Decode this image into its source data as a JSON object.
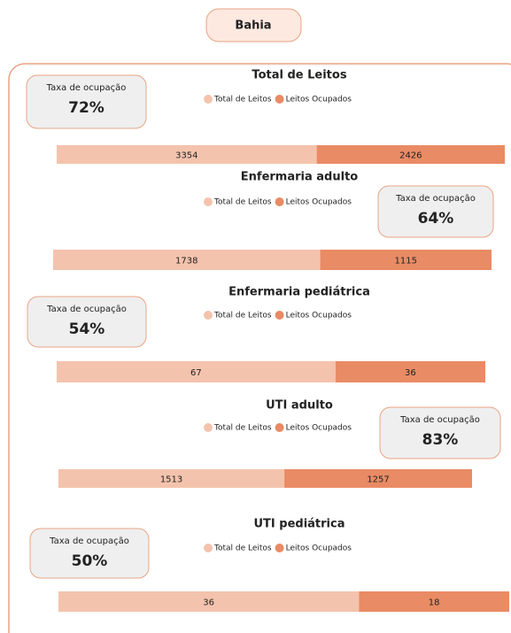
{
  "header": {
    "title": "Bahia"
  },
  "chart_data": [
    {
      "type": "bar",
      "title": "Total de Leitos",
      "series": [
        {
          "name": "Total de Leitos",
          "color": "#f4c3ad",
          "values": [
            3354
          ]
        },
        {
          "name": "Leitos Ocupados",
          "color": "#e98b64",
          "values": [
            2426
          ]
        }
      ],
      "kpi": {
        "label": "Taxa de ocupação",
        "text": "72%"
      }
    },
    {
      "type": "bar",
      "title": "Enfermaria adulto",
      "series": [
        {
          "name": "Total de Leitos",
          "color": "#f4c3ad",
          "values": [
            1738
          ]
        },
        {
          "name": "Leitos Ocupados",
          "color": "#e98b64",
          "values": [
            1115
          ]
        }
      ],
      "kpi": {
        "label": "Taxa de ocupação",
        "text": "64%"
      }
    },
    {
      "type": "bar",
      "title": "Enfermaria pediátrica",
      "series": [
        {
          "name": "Total de Leitos",
          "color": "#f4c3ad",
          "values": [
            67
          ]
        },
        {
          "name": "Leitos Ocupados",
          "color": "#e98b64",
          "values": [
            36
          ]
        }
      ],
      "kpi": {
        "label": "Taxa de ocupação",
        "text": "54%"
      }
    },
    {
      "type": "bar",
      "title": "UTI adulto",
      "series": [
        {
          "name": "Total de Leitos",
          "color": "#f4c3ad",
          "values": [
            1513
          ]
        },
        {
          "name": "Leitos Ocupados",
          "color": "#e98b64",
          "values": [
            1257
          ]
        }
      ],
      "kpi": {
        "label": "Taxa de ocupação",
        "text": "83%"
      }
    },
    {
      "type": "bar",
      "title": "UTI pediátrica",
      "series": [
        {
          "name": "Total de Leitos",
          "color": "#f4c3ad",
          "values": [
            36
          ]
        },
        {
          "name": "Leitos Ocupados",
          "color": "#e98b64",
          "values": [
            18
          ]
        }
      ],
      "kpi": {
        "label": "Taxa de ocupação",
        "text": "50%"
      }
    }
  ]
}
